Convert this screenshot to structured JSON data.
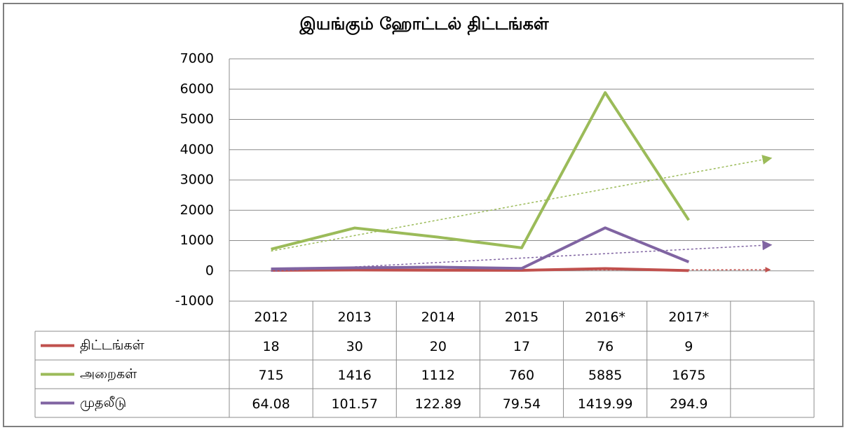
{
  "chart_data": {
    "type": "line",
    "title": "இயங்கும் ஹோட்டல் திட்டங்கள்",
    "categories": [
      "2012",
      "2013",
      "2014",
      "2015",
      "2016*",
      "2017*"
    ],
    "series": [
      {
        "name": "திட்டங்கள்",
        "color": "#c0504d",
        "values": [
          18,
          30,
          20,
          17,
          76,
          9
        ]
      },
      {
        "name": "அறைகள்",
        "color": "#9bbb59",
        "values": [
          715,
          1416,
          1112,
          760,
          5885,
          1675
        ]
      },
      {
        "name": "முதலீடு",
        "color": "#8064a2",
        "values": [
          64.08,
          101.57,
          122.89,
          79.54,
          1419.99,
          294.9
        ]
      }
    ],
    "ylim": [
      -1000,
      7000
    ],
    "yticks": [
      -1000,
      0,
      1000,
      2000,
      3000,
      4000,
      5000,
      6000,
      7000
    ],
    "grid": true,
    "trendline": true,
    "data_table": true
  }
}
